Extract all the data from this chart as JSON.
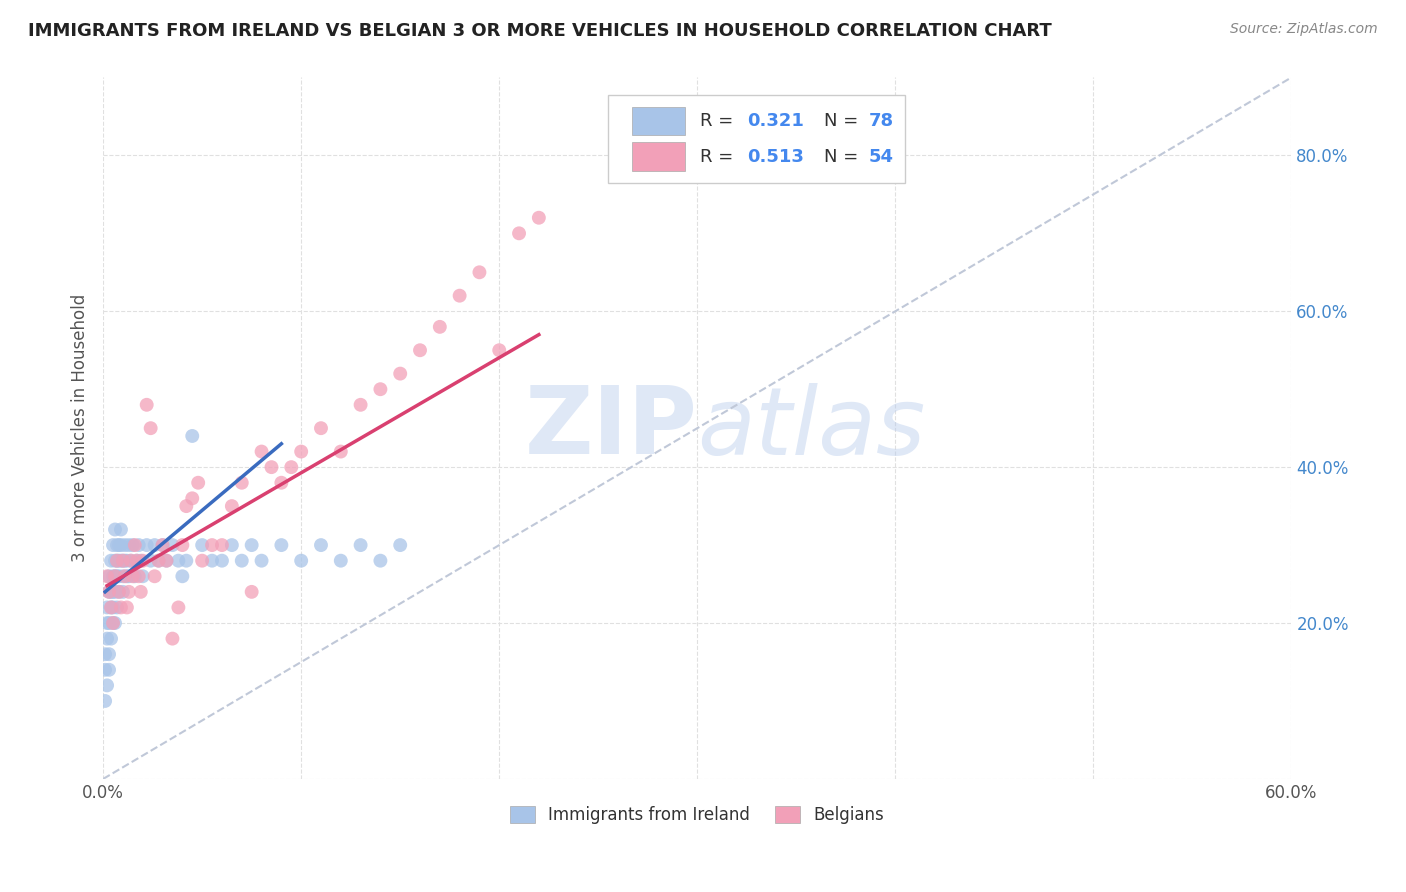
{
  "title": "IMMIGRANTS FROM IRELAND VS BELGIAN 3 OR MORE VEHICLES IN HOUSEHOLD CORRELATION CHART",
  "source": "Source: ZipAtlas.com",
  "ylabel": "3 or more Vehicles in Household",
  "xlim": [
    0.0,
    0.6
  ],
  "ylim": [
    0.0,
    0.9
  ],
  "xticks": [
    0.0,
    0.1,
    0.2,
    0.3,
    0.4,
    0.5,
    0.6
  ],
  "xticklabels": [
    "0.0%",
    "",
    "",
    "",
    "",
    "",
    "60.0%"
  ],
  "yticks": [
    0.0,
    0.2,
    0.4,
    0.6,
    0.8
  ],
  "yticklabels": [
    "",
    "20.0%",
    "40.0%",
    "60.0%",
    "80.0%"
  ],
  "background_color": "#ffffff",
  "grid_color": "#e0e0e0",
  "watermark": "ZIPatlas",
  "ireland_color": "#a8c4e8",
  "belgian_color": "#f2a0b8",
  "ireland_trend_color": "#3a6bbf",
  "belgian_trend_color": "#d94070",
  "dashed_line_color": "#c0c8d8",
  "ireland_scatter_x": [
    0.001,
    0.001,
    0.001,
    0.002,
    0.002,
    0.002,
    0.002,
    0.003,
    0.003,
    0.003,
    0.003,
    0.003,
    0.004,
    0.004,
    0.004,
    0.004,
    0.005,
    0.005,
    0.005,
    0.005,
    0.005,
    0.006,
    0.006,
    0.006,
    0.006,
    0.006,
    0.007,
    0.007,
    0.007,
    0.007,
    0.008,
    0.008,
    0.008,
    0.008,
    0.009,
    0.009,
    0.009,
    0.01,
    0.01,
    0.01,
    0.011,
    0.011,
    0.012,
    0.012,
    0.013,
    0.013,
    0.014,
    0.015,
    0.016,
    0.017,
    0.018,
    0.019,
    0.02,
    0.022,
    0.024,
    0.026,
    0.028,
    0.03,
    0.032,
    0.035,
    0.038,
    0.04,
    0.042,
    0.045,
    0.05,
    0.055,
    0.06,
    0.065,
    0.07,
    0.075,
    0.08,
    0.09,
    0.1,
    0.11,
    0.12,
    0.13,
    0.14,
    0.15
  ],
  "ireland_scatter_y": [
    0.14,
    0.16,
    0.1,
    0.2,
    0.22,
    0.18,
    0.12,
    0.24,
    0.26,
    0.16,
    0.2,
    0.14,
    0.22,
    0.28,
    0.24,
    0.18,
    0.3,
    0.26,
    0.22,
    0.2,
    0.24,
    0.28,
    0.32,
    0.24,
    0.26,
    0.2,
    0.3,
    0.26,
    0.28,
    0.22,
    0.28,
    0.3,
    0.26,
    0.24,
    0.3,
    0.28,
    0.32,
    0.26,
    0.28,
    0.24,
    0.3,
    0.28,
    0.28,
    0.26,
    0.3,
    0.26,
    0.28,
    0.3,
    0.26,
    0.28,
    0.3,
    0.28,
    0.26,
    0.3,
    0.28,
    0.3,
    0.28,
    0.3,
    0.28,
    0.3,
    0.28,
    0.26,
    0.28,
    0.44,
    0.3,
    0.28,
    0.28,
    0.3,
    0.28,
    0.3,
    0.28,
    0.3,
    0.28,
    0.3,
    0.28,
    0.3,
    0.28,
    0.3
  ],
  "belgian_scatter_x": [
    0.002,
    0.003,
    0.004,
    0.005,
    0.006,
    0.007,
    0.008,
    0.009,
    0.01,
    0.011,
    0.012,
    0.013,
    0.014,
    0.015,
    0.016,
    0.017,
    0.018,
    0.019,
    0.02,
    0.022,
    0.024,
    0.026,
    0.028,
    0.03,
    0.032,
    0.035,
    0.038,
    0.04,
    0.042,
    0.045,
    0.048,
    0.05,
    0.055,
    0.06,
    0.065,
    0.07,
    0.075,
    0.08,
    0.085,
    0.09,
    0.095,
    0.1,
    0.11,
    0.12,
    0.13,
    0.14,
    0.15,
    0.16,
    0.17,
    0.18,
    0.19,
    0.2,
    0.21,
    0.22
  ],
  "belgian_scatter_y": [
    0.26,
    0.24,
    0.22,
    0.2,
    0.26,
    0.28,
    0.24,
    0.22,
    0.28,
    0.26,
    0.22,
    0.24,
    0.28,
    0.26,
    0.3,
    0.28,
    0.26,
    0.24,
    0.28,
    0.48,
    0.45,
    0.26,
    0.28,
    0.3,
    0.28,
    0.18,
    0.22,
    0.3,
    0.35,
    0.36,
    0.38,
    0.28,
    0.3,
    0.3,
    0.35,
    0.38,
    0.24,
    0.42,
    0.4,
    0.38,
    0.4,
    0.42,
    0.45,
    0.42,
    0.48,
    0.5,
    0.52,
    0.55,
    0.58,
    0.62,
    0.65,
    0.55,
    0.7,
    0.72
  ],
  "ireland_trend_x": [
    0.001,
    0.09
  ],
  "ireland_trend_y": [
    0.24,
    0.43
  ],
  "belgian_trend_x": [
    0.002,
    0.22
  ],
  "belgian_trend_y": [
    0.248,
    0.57
  ]
}
